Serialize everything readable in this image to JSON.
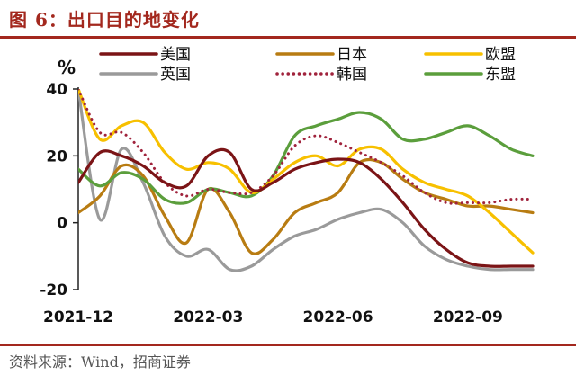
{
  "header": {
    "title": "图 6：出口目的地变化"
  },
  "footer": {
    "source": "资料来源：Wind，招商证券"
  },
  "chart_data": {
    "type": "line",
    "ylabel": "%",
    "ylim": [
      -20,
      40
    ],
    "yticks": [
      40,
      20,
      0,
      -20
    ],
    "x": [
      0,
      0.5,
      1,
      1.5,
      2,
      2.5,
      3,
      3.5,
      4,
      4.5,
      5,
      5.5,
      6,
      6.5,
      7,
      7.5,
      8,
      8.5,
      9,
      9.5,
      10,
      10.5
    ],
    "xticks": [
      {
        "x": 0,
        "label": "2021-12"
      },
      {
        "x": 3,
        "label": "2022-03"
      },
      {
        "x": 6,
        "label": "2022-06"
      },
      {
        "x": 9,
        "label": "2022-09"
      }
    ],
    "legend_position": "top",
    "series": [
      {
        "name": "美国",
        "color": "#7b1416",
        "style": "solid",
        "values": [
          12,
          21,
          20,
          17,
          12,
          11,
          20,
          21,
          10,
          12,
          16,
          18,
          19,
          18,
          13,
          6,
          -2,
          -8,
          -12,
          -13,
          -13,
          -13
        ]
      },
      {
        "name": "日本",
        "color": "#b87c12",
        "style": "solid",
        "values": [
          3,
          8,
          17,
          14,
          2,
          -6,
          10,
          3,
          -9,
          -5,
          3,
          6,
          9,
          18,
          18,
          13,
          9,
          7,
          5,
          5,
          4,
          3
        ]
      },
      {
        "name": "欧盟",
        "color": "#f7c000",
        "style": "solid",
        "values": [
          40,
          25,
          29,
          30,
          21,
          16,
          18,
          16,
          9,
          13,
          18,
          20,
          17,
          22,
          22,
          16,
          12,
          10,
          8,
          3,
          -3,
          -9
        ]
      },
      {
        "name": "英国",
        "color": "#9a9a9a",
        "style": "solid",
        "values": [
          40,
          1,
          22,
          12,
          -4,
          -10,
          -8,
          -14,
          -13,
          -8,
          -4,
          -2,
          1,
          3,
          4,
          0,
          -7,
          -11,
          -13,
          -14,
          -14,
          -14
        ]
      },
      {
        "name": "韩国",
        "color": "#a0233c",
        "style": "dotted",
        "values": [
          40,
          27,
          27,
          21,
          12,
          8,
          10,
          9,
          9,
          14,
          23,
          26,
          24,
          21,
          18,
          14,
          9,
          6,
          6,
          6,
          7,
          7
        ]
      },
      {
        "name": "东盟",
        "color": "#5b9e3c",
        "style": "solid",
        "values": [
          16,
          11,
          15,
          13,
          7,
          6,
          10,
          9,
          8,
          14,
          26,
          29,
          31,
          33,
          31,
          25,
          25,
          27,
          29,
          26,
          22,
          20
        ]
      }
    ]
  }
}
